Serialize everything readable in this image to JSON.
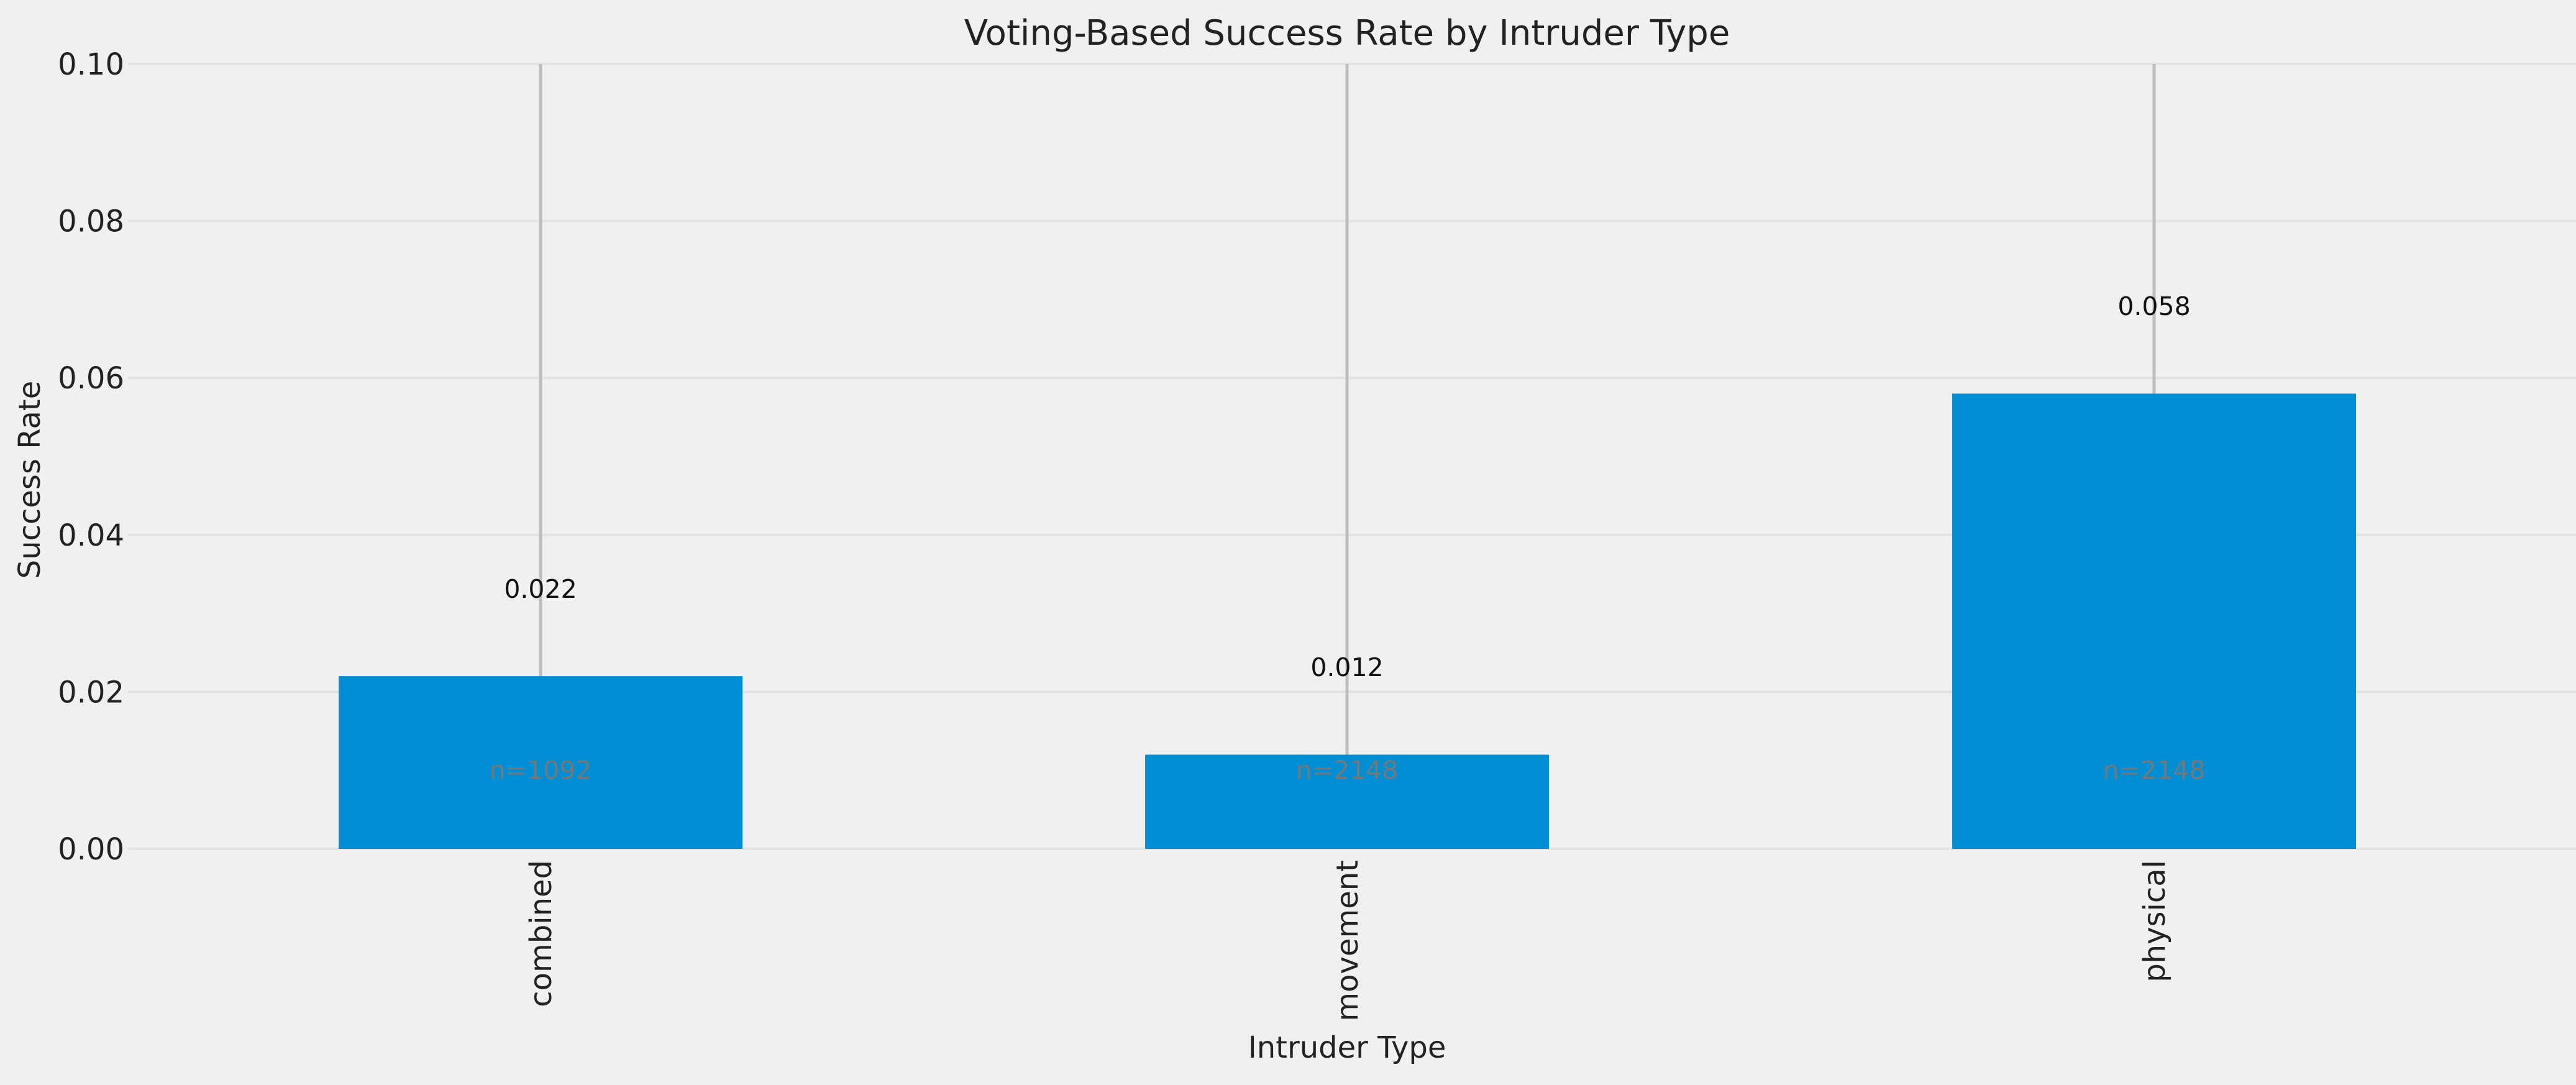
{
  "chart_data": {
    "type": "bar",
    "title": "Voting-Based Success Rate by Intruder Type",
    "xlabel": "Intruder Type",
    "ylabel": "Success Rate",
    "ylim": [
      0,
      0.1
    ],
    "yticks": [
      "0.00",
      "0.02",
      "0.04",
      "0.06",
      "0.08",
      "0.10"
    ],
    "grid": true,
    "categories": [
      "combined",
      "movement",
      "physical"
    ],
    "values": [
      0.022,
      0.012,
      0.058
    ],
    "value_labels": [
      "0.022",
      "0.012",
      "0.058"
    ],
    "n_labels": [
      "n=1092",
      "n=2148",
      "n=2148"
    ],
    "bar_color": "#008fd5",
    "background_color": "#f0f0f0",
    "error_bar_color": "#bdbdbd"
  }
}
